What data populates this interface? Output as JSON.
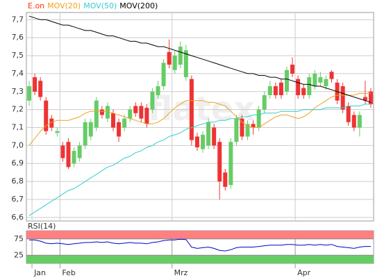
{
  "chart_data": [
    {
      "type": "candlestick",
      "watermark": "flatex",
      "categories": [
        null,
        "Jan",
        null,
        null,
        null,
        null,
        "Feb",
        null,
        null,
        null,
        null,
        null,
        null,
        null,
        null,
        null,
        null,
        null,
        null,
        null,
        null,
        null,
        null,
        null,
        null,
        null,
        "Mrz",
        null,
        null,
        null,
        null,
        null,
        null,
        null,
        null,
        null,
        null,
        null,
        null,
        null,
        null,
        null,
        null,
        null,
        null,
        null,
        null,
        null,
        "Apr",
        null,
        null,
        null,
        null,
        null,
        null,
        null,
        null,
        null,
        null,
        null,
        null,
        null
      ],
      "series": [
        {
          "name": "E.on",
          "color": "#ff3300",
          "up_color": "#66cc66",
          "down_color": "#ee3333",
          "open": [
            7.25,
            7.38,
            7.36,
            7.25,
            7.15,
            7.07,
            7.0,
            7.02,
            6.9,
            6.93,
            7.0,
            7.05,
            7.1,
            7.2,
            7.15,
            7.18,
            7.13,
            7.1,
            7.15,
            7.22,
            7.22,
            7.21,
            7.2,
            7.28,
            7.33,
            7.52,
            7.42,
            7.45,
            7.38,
            7.37,
            7.05,
            6.98,
            7.0,
            7.1,
            7.02,
            6.85,
            6.78,
            7.02,
            7.15,
            7.05,
            7.12,
            7.1,
            7.2,
            7.28,
            7.33,
            7.35,
            7.3,
            7.45,
            7.37,
            7.32,
            7.28,
            7.33,
            7.35,
            7.33,
            7.41,
            7.35,
            7.33,
            7.22,
            7.17,
            7.1,
            7.27,
            7.3
          ],
          "high": [
            7.36,
            7.4,
            7.38,
            7.27,
            7.17,
            7.1,
            7.02,
            7.04,
            6.99,
            7.02,
            7.15,
            7.15,
            7.27,
            7.22,
            7.24,
            7.2,
            7.15,
            7.17,
            7.22,
            7.24,
            7.24,
            7.23,
            7.32,
            7.36,
            7.48,
            7.59,
            7.53,
            7.58,
            7.56,
            7.39,
            7.07,
            7.08,
            7.15,
            7.12,
            7.04,
            6.87,
            7.04,
            7.17,
            7.17,
            7.14,
            7.14,
            7.22,
            7.3,
            7.36,
            7.35,
            7.37,
            7.44,
            7.49,
            7.39,
            7.34,
            7.4,
            7.42,
            7.41,
            7.39,
            7.42,
            7.37,
            7.35,
            7.24,
            7.19,
            7.19,
            7.36,
            7.32
          ],
          "low": [
            7.22,
            7.28,
            7.25,
            7.06,
            7.08,
            7.05,
            6.91,
            6.87,
            6.88,
            6.91,
            6.98,
            7.03,
            7.08,
            7.15,
            7.13,
            7.08,
            7.02,
            7.08,
            7.13,
            7.16,
            7.13,
            7.1,
            7.18,
            7.26,
            7.31,
            7.43,
            7.4,
            7.43,
            7.36,
            7.0,
            6.97,
            6.96,
            6.98,
            6.98,
            6.7,
            6.75,
            6.76,
            7.0,
            7.03,
            7.03,
            7.06,
            7.08,
            7.18,
            7.26,
            7.26,
            7.26,
            7.28,
            7.38,
            7.26,
            7.26,
            7.26,
            7.31,
            7.33,
            7.31,
            7.35,
            7.23,
            7.18,
            7.11,
            7.08,
            7.05,
            7.23,
            7.21
          ],
          "close": [
            7.33,
            7.3,
            7.27,
            7.08,
            7.1,
            7.08,
            6.93,
            6.88,
            6.97,
            7.0,
            7.13,
            7.13,
            7.25,
            7.17,
            7.22,
            7.1,
            7.05,
            7.15,
            7.2,
            7.18,
            7.15,
            7.12,
            7.3,
            7.33,
            7.46,
            7.45,
            7.5,
            7.55,
            7.53,
            7.03,
            6.99,
            7.06,
            7.13,
            7.0,
            6.8,
            6.77,
            7.02,
            7.15,
            7.05,
            7.12,
            7.1,
            7.2,
            7.28,
            7.33,
            7.28,
            7.28,
            7.42,
            7.4,
            7.28,
            7.28,
            7.38,
            7.4,
            7.38,
            7.37,
            7.37,
            7.25,
            7.2,
            7.13,
            7.1,
            7.17,
            7.25,
            7.23
          ]
        },
        {
          "name": "MOV(20)",
          "color": "#f0a020",
          "values": [
            7.0,
            7.04,
            7.08,
            7.11,
            7.13,
            7.14,
            7.14,
            7.14,
            7.15,
            7.16,
            7.18,
            7.19,
            7.19,
            7.19,
            7.19,
            7.18,
            7.17,
            7.16,
            7.15,
            7.14,
            7.13,
            7.12,
            7.12,
            7.13,
            7.15,
            7.18,
            7.21,
            7.23,
            7.25,
            7.25,
            7.25,
            7.25,
            7.24,
            7.24,
            7.23,
            7.22,
            7.19,
            7.16,
            7.13,
            7.11,
            7.1,
            7.1,
            7.12,
            7.14,
            7.16,
            7.17,
            7.17,
            7.16,
            7.15,
            7.16,
            7.18,
            7.21,
            7.23,
            7.25,
            7.27,
            7.28,
            7.28,
            7.28,
            7.28,
            7.29,
            7.29,
            7.29
          ]
        },
        {
          "name": "MOV(50)",
          "color": "#33cccc",
          "values": [
            6.61,
            6.63,
            6.65,
            6.67,
            6.69,
            6.71,
            6.73,
            6.75,
            6.76,
            6.78,
            6.8,
            6.82,
            6.84,
            6.86,
            6.88,
            6.89,
            6.91,
            6.93,
            6.94,
            6.96,
            6.97,
            6.99,
            7.0,
            7.02,
            7.03,
            7.05,
            7.06,
            7.07,
            7.09,
            7.1,
            7.11,
            7.12,
            7.13,
            7.13,
            7.14,
            7.14,
            7.15,
            7.15,
            7.16,
            7.16,
            7.17,
            7.17,
            7.18,
            7.18,
            7.18,
            7.19,
            7.19,
            7.19,
            7.19,
            7.2,
            7.2,
            7.2,
            7.2,
            7.21,
            7.21,
            7.21,
            7.21,
            7.22,
            7.22,
            7.22,
            7.23,
            7.23
          ]
        },
        {
          "name": "MOV(200)",
          "color": "#000000",
          "values": [
            7.72,
            7.71,
            7.7,
            7.7,
            7.69,
            7.68,
            7.67,
            7.67,
            7.66,
            7.65,
            7.64,
            7.64,
            7.63,
            7.62,
            7.61,
            7.61,
            7.6,
            7.59,
            7.58,
            7.58,
            7.57,
            7.57,
            7.56,
            7.55,
            7.55,
            7.54,
            7.53,
            7.52,
            7.51,
            7.5,
            7.49,
            7.48,
            7.47,
            7.46,
            7.45,
            7.44,
            7.43,
            7.42,
            7.41,
            7.4,
            7.4,
            7.39,
            7.39,
            7.38,
            7.38,
            7.37,
            7.37,
            7.36,
            7.35,
            7.34,
            7.34,
            7.33,
            7.33,
            7.32,
            7.31,
            7.3,
            7.29,
            7.28,
            7.27,
            7.26,
            7.25,
            7.24
          ]
        }
      ],
      "ylim": [
        6.58,
        7.74
      ],
      "yticks": [
        {
          "value": 6.6,
          "label": "6,6"
        },
        {
          "value": 6.7,
          "label": "6,7"
        },
        {
          "value": 6.8,
          "label": "6,8"
        },
        {
          "value": 6.9,
          "label": "6,9"
        },
        {
          "value": 7.0,
          "label": "7,0"
        },
        {
          "value": 7.1,
          "label": "7,1"
        },
        {
          "value": 7.2,
          "label": "7,2"
        },
        {
          "value": 7.3,
          "label": "7,3"
        },
        {
          "value": 7.4,
          "label": "7,4"
        },
        {
          "value": 7.5,
          "label": "7,5"
        },
        {
          "value": 7.6,
          "label": "7,6"
        },
        {
          "value": 7.7,
          "label": "7,7"
        }
      ],
      "grid": true
    },
    {
      "type": "line",
      "title": "RSI(14)",
      "series": [
        {
          "color": "#0000cc",
          "values": [
            72,
            72,
            68,
            62,
            60,
            62,
            60,
            58,
            60,
            62,
            64,
            64,
            66,
            64,
            66,
            62,
            60,
            62,
            64,
            62,
            62,
            60,
            64,
            66,
            70,
            72,
            72,
            74,
            73,
            50,
            46,
            48,
            50,
            46,
            40,
            38,
            42,
            48,
            50,
            50,
            50,
            52,
            54,
            56,
            56,
            56,
            58,
            58,
            56,
            56,
            58,
            56,
            58,
            56,
            58,
            52,
            50,
            48,
            46,
            50,
            52,
            52
          ]
        }
      ],
      "ylim": [
        0,
        100
      ],
      "yticks": [
        25,
        75
      ],
      "overbought_color": "#ff8080",
      "oversold_color": "#66cc66"
    }
  ]
}
